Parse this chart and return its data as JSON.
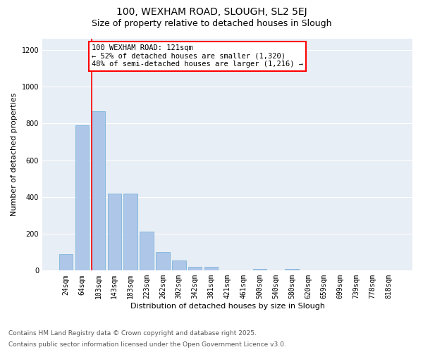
{
  "title_line1": "100, WEXHAM ROAD, SLOUGH, SL2 5EJ",
  "title_line2": "Size of property relative to detached houses in Slough",
  "xlabel": "Distribution of detached houses by size in Slough",
  "ylabel": "Number of detached properties",
  "categories": [
    "24sqm",
    "64sqm",
    "103sqm",
    "143sqm",
    "183sqm",
    "223sqm",
    "262sqm",
    "302sqm",
    "342sqm",
    "381sqm",
    "421sqm",
    "461sqm",
    "500sqm",
    "540sqm",
    "580sqm",
    "620sqm",
    "659sqm",
    "699sqm",
    "739sqm",
    "778sqm",
    "818sqm"
  ],
  "values": [
    90,
    790,
    865,
    420,
    420,
    210,
    100,
    55,
    20,
    20,
    0,
    0,
    10,
    0,
    10,
    0,
    0,
    0,
    0,
    0,
    0
  ],
  "bar_color": "#aec6e8",
  "bar_edge_color": "#6baed6",
  "vline_x_index": 2,
  "vline_color": "red",
  "annotation_text": "100 WEXHAM ROAD: 121sqm\n← 52% of detached houses are smaller (1,320)\n48% of semi-detached houses are larger (1,216) →",
  "annotation_box_color": "red",
  "annotation_text_color": "black",
  "annotation_fill": "white",
  "ylim": [
    0,
    1260
  ],
  "yticks": [
    0,
    200,
    400,
    600,
    800,
    1000,
    1200
  ],
  "background_color": "#e8eef5",
  "grid_color": "white",
  "footnote_line1": "Contains HM Land Registry data © Crown copyright and database right 2025.",
  "footnote_line2": "Contains public sector information licensed under the Open Government Licence v3.0.",
  "title_fontsize": 10,
  "subtitle_fontsize": 9,
  "axis_label_fontsize": 8,
  "tick_fontsize": 7,
  "annotation_fontsize": 7.5,
  "footnote_fontsize": 6.5
}
